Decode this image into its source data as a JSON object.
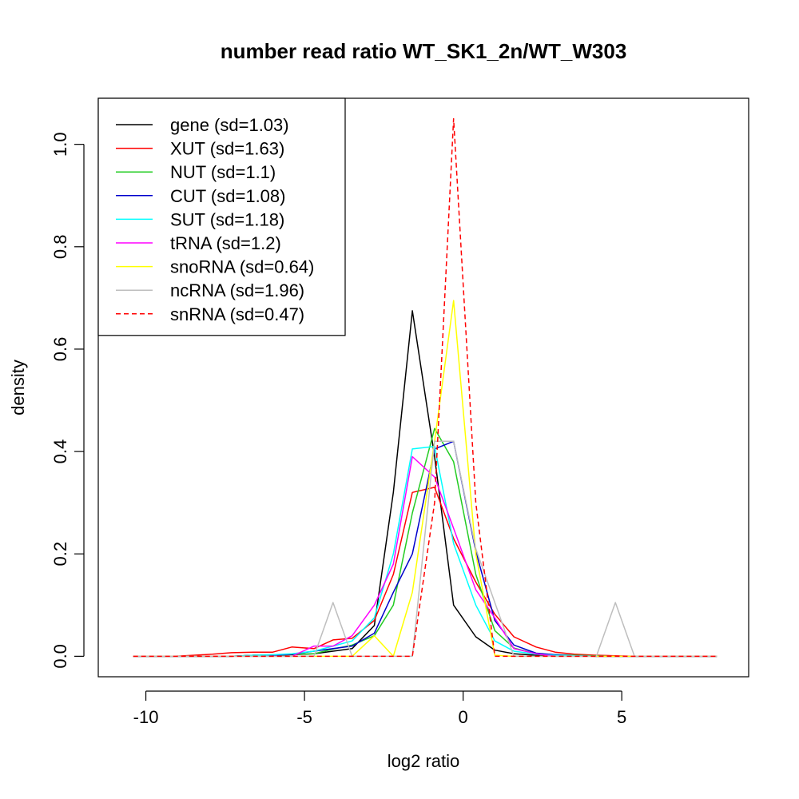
{
  "chart_data": {
    "type": "line",
    "title": "number read ratio WT_SK1_2n/WT_W303",
    "xlabel": "log2 ratio",
    "ylabel": "density",
    "xlim": [
      -11.5,
      9.0
    ],
    "ylim": [
      -0.04,
      1.09
    ],
    "xticks": [
      -10,
      -5,
      0,
      5
    ],
    "xtick_labels": [
      "-10",
      "-5",
      "0",
      "5"
    ],
    "yticks": [
      0.0,
      0.2,
      0.4,
      0.6,
      0.8,
      1.0
    ],
    "ytick_labels": [
      "0.0",
      "0.2",
      "0.4",
      "0.6",
      "0.8",
      "1.0"
    ],
    "grid": false,
    "legend_position": "top-left",
    "series": [
      {
        "name": "gene (sd=1.03)",
        "color": "#000000",
        "dash": "solid",
        "x": [
          -10.4,
          -9.8,
          -9.1,
          -8.5,
          -7.9,
          -7.3,
          -6.6,
          -6.0,
          -5.4,
          -4.7,
          -4.1,
          -3.5,
          -2.8,
          -2.2,
          -1.6,
          -0.9,
          -0.3,
          0.4,
          1.0,
          1.6,
          2.3,
          2.9,
          3.5,
          4.2,
          4.8,
          5.4,
          6.1,
          6.7,
          7.3,
          8.0
        ],
        "y": [
          0,
          0,
          0,
          0,
          0,
          0,
          0.002,
          0.002,
          0.003,
          0.005,
          0.01,
          0.015,
          0.06,
          0.32,
          0.675,
          0.39,
          0.1,
          0.038,
          0.012,
          0.005,
          0.002,
          0.001,
          0.001,
          0,
          0,
          0,
          0,
          0,
          0,
          0
        ]
      },
      {
        "name": "XUT (sd=1.63)",
        "color": "#ff0000",
        "dash": "solid",
        "x": [
          -10.4,
          -9.8,
          -9.1,
          -8.5,
          -7.9,
          -7.3,
          -6.6,
          -6.0,
          -5.4,
          -4.7,
          -4.1,
          -3.5,
          -2.8,
          -2.2,
          -1.6,
          -0.9,
          -0.3,
          0.4,
          1.0,
          1.6,
          2.3,
          2.9,
          3.5,
          4.2,
          4.8,
          5.4,
          6.1,
          6.7,
          7.3,
          8.0
        ],
        "y": [
          0,
          0,
          0,
          0.002,
          0.004,
          0.007,
          0.008,
          0.008,
          0.018,
          0.015,
          0.032,
          0.035,
          0.07,
          0.16,
          0.32,
          0.33,
          0.23,
          0.145,
          0.082,
          0.038,
          0.018,
          0.008,
          0.004,
          0.002,
          0.001,
          0,
          0,
          0,
          0,
          0
        ]
      },
      {
        "name": "NUT (sd=1.1)",
        "color": "#22cc22",
        "dash": "solid",
        "x": [
          -10.4,
          -9.8,
          -9.1,
          -8.5,
          -7.9,
          -7.3,
          -6.6,
          -6.0,
          -5.4,
          -4.7,
          -4.1,
          -3.5,
          -2.8,
          -2.2,
          -1.6,
          -0.9,
          -0.3,
          0.4,
          1.0,
          1.6,
          2.3,
          2.9,
          3.5,
          4.2,
          4.8,
          5.4,
          6.1,
          6.7,
          7.3,
          8.0
        ],
        "y": [
          0,
          0,
          0,
          0,
          0,
          0,
          0.002,
          0.002,
          0.004,
          0.005,
          0.014,
          0.022,
          0.04,
          0.1,
          0.28,
          0.445,
          0.38,
          0.16,
          0.05,
          0.016,
          0.005,
          0.003,
          0.002,
          0.001,
          0,
          0,
          0,
          0,
          0,
          0
        ]
      },
      {
        "name": "CUT (sd=1.08)",
        "color": "#0000cc",
        "dash": "solid",
        "x": [
          -10.4,
          -9.8,
          -9.1,
          -8.5,
          -7.9,
          -7.3,
          -6.6,
          -6.0,
          -5.4,
          -4.7,
          -4.1,
          -3.5,
          -2.8,
          -2.2,
          -1.6,
          -0.9,
          -0.3,
          0.4,
          1.0,
          1.6,
          2.3,
          2.9,
          3.5,
          4.2,
          4.8,
          5.4,
          6.1,
          6.7,
          7.3,
          8.0
        ],
        "y": [
          0,
          0,
          0,
          0,
          0,
          0,
          0.002,
          0.002,
          0.004,
          0.01,
          0.015,
          0.02,
          0.045,
          0.125,
          0.2,
          0.405,
          0.42,
          0.205,
          0.07,
          0.022,
          0.006,
          0.003,
          0.001,
          0,
          0,
          0,
          0,
          0,
          0,
          0
        ]
      },
      {
        "name": "SUT (sd=1.18)",
        "color": "#00ffff",
        "dash": "solid",
        "x": [
          -10.4,
          -9.8,
          -9.1,
          -8.5,
          -7.9,
          -7.3,
          -6.6,
          -6.0,
          -5.4,
          -4.7,
          -4.1,
          -3.5,
          -2.8,
          -2.2,
          -1.6,
          -0.9,
          -0.3,
          0.4,
          1.0,
          1.6,
          2.3,
          2.9,
          3.5,
          4.2,
          4.8,
          5.4,
          6.1,
          6.7,
          7.3,
          8.0
        ],
        "y": [
          0,
          0,
          0,
          0,
          0,
          0,
          0.002,
          0.003,
          0.005,
          0.01,
          0.02,
          0.03,
          0.075,
          0.2,
          0.405,
          0.41,
          0.22,
          0.1,
          0.03,
          0.01,
          0.004,
          0.002,
          0.001,
          0,
          0,
          0,
          0,
          0,
          0,
          0
        ]
      },
      {
        "name": "tRNA (sd=1.2)",
        "color": "#ff00ff",
        "dash": "solid",
        "x": [
          -10.4,
          -9.8,
          -9.1,
          -8.5,
          -7.9,
          -7.3,
          -6.6,
          -6.0,
          -5.4,
          -4.7,
          -4.1,
          -3.5,
          -2.8,
          -2.2,
          -1.6,
          -0.9,
          -0.3,
          0.4,
          1.0,
          1.6,
          2.3,
          2.9,
          3.5,
          4.2,
          4.8,
          5.4,
          6.1,
          6.7,
          7.3,
          8.0
        ],
        "y": [
          0,
          0,
          0,
          0,
          0,
          0,
          0,
          0,
          0,
          0.02,
          0.02,
          0.04,
          0.1,
          0.18,
          0.39,
          0.35,
          0.25,
          0.13,
          0.075,
          0.015,
          0.005,
          0,
          0,
          0,
          0,
          0,
          0,
          0,
          0,
          0
        ]
      },
      {
        "name": "snoRNA (sd=0.64)",
        "color": "#ffff00",
        "dash": "solid",
        "x": [
          -10.4,
          -9.8,
          -9.1,
          -8.5,
          -7.9,
          -7.3,
          -6.6,
          -6.0,
          -5.4,
          -4.7,
          -4.1,
          -3.5,
          -2.8,
          -2.2,
          -1.6,
          -0.9,
          -0.3,
          0.4,
          1.0,
          1.6,
          2.3,
          2.9,
          3.5,
          4.2,
          4.8,
          5.4,
          6.1,
          6.7,
          7.3,
          8.0
        ],
        "y": [
          0,
          0,
          0,
          0,
          0,
          0,
          0,
          0,
          0,
          0,
          0,
          0,
          0.04,
          0,
          0.125,
          0.42,
          0.695,
          0.2,
          0.002,
          0,
          0,
          0,
          0,
          0,
          0,
          0,
          0,
          0,
          0,
          0
        ]
      },
      {
        "name": "ncRNA (sd=1.96)",
        "color": "#bebebe",
        "dash": "solid",
        "x": [
          -10.4,
          -9.8,
          -9.1,
          -8.5,
          -7.9,
          -7.3,
          -6.6,
          -6.0,
          -5.4,
          -4.7,
          -4.1,
          -3.5,
          -2.8,
          -2.2,
          -1.6,
          -0.9,
          -0.3,
          0.4,
          1.0,
          1.6,
          2.3,
          2.9,
          3.5,
          4.2,
          4.8,
          5.4,
          6.1,
          6.7,
          7.3,
          8.0
        ],
        "y": [
          0,
          0,
          0,
          0,
          0,
          0,
          0,
          0,
          0,
          0,
          0.105,
          0,
          0,
          0,
          0,
          0.42,
          0.42,
          0.21,
          0.105,
          0,
          0,
          0,
          0,
          0,
          0.105,
          0,
          0,
          0,
          0,
          0
        ]
      },
      {
        "name": "snRNA (sd=0.47)",
        "color": "#ff0000",
        "dash": "dashed",
        "x": [
          -10.4,
          -9.8,
          -9.1,
          -8.5,
          -7.9,
          -7.3,
          -6.6,
          -6.0,
          -5.4,
          -4.7,
          -4.1,
          -3.5,
          -2.8,
          -2.2,
          -1.6,
          -0.9,
          -0.3,
          0.4,
          1.0,
          1.6,
          2.3,
          2.9,
          3.5,
          4.2,
          4.8,
          5.4,
          6.1,
          6.7,
          7.3,
          8.0
        ],
        "y": [
          0,
          0,
          0,
          0,
          0,
          0,
          0,
          0,
          0,
          0,
          0,
          0,
          0,
          0,
          0,
          0.3,
          1.05,
          0.3,
          0,
          0,
          0,
          0,
          0,
          0,
          0,
          0,
          0,
          0,
          0,
          0
        ]
      }
    ]
  }
}
